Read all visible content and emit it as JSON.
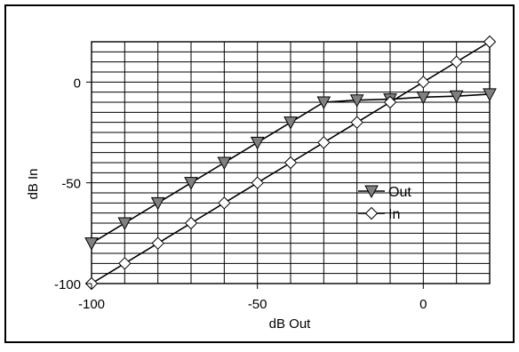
{
  "chart_data": {
    "type": "line",
    "title": "",
    "xlabel": "dB Out",
    "ylabel": "dB In",
    "xlim": [
      -100,
      20
    ],
    "ylim": [
      -100,
      20
    ],
    "xticks": [
      -100,
      -50,
      0
    ],
    "yticks": [
      -100,
      -50,
      0
    ],
    "x_tick_labels": [
      "-100",
      "-50",
      "0"
    ],
    "y_tick_labels": [
      "-100",
      "-50",
      "0"
    ],
    "grid": true,
    "grid_step": 10,
    "legend": "center-right",
    "x": [
      -100,
      -90,
      -80,
      -70,
      -60,
      -50,
      -40,
      -30,
      -20,
      -10,
      0,
      10,
      20
    ],
    "series": [
      {
        "name": "Out",
        "marker": "triangle-down",
        "color": "#808080",
        "values": [
          -80,
          -70,
          -60,
          -50,
          -40,
          -30,
          -20,
          -10,
          -9,
          -8.5,
          -7.5,
          -7,
          -6
        ]
      },
      {
        "name": "In",
        "marker": "diamond",
        "color": "#ffffff",
        "values": [
          -100,
          -90,
          -80,
          -70,
          -60,
          -50,
          -40,
          -30,
          -20,
          -10,
          0,
          10,
          20
        ]
      }
    ]
  }
}
